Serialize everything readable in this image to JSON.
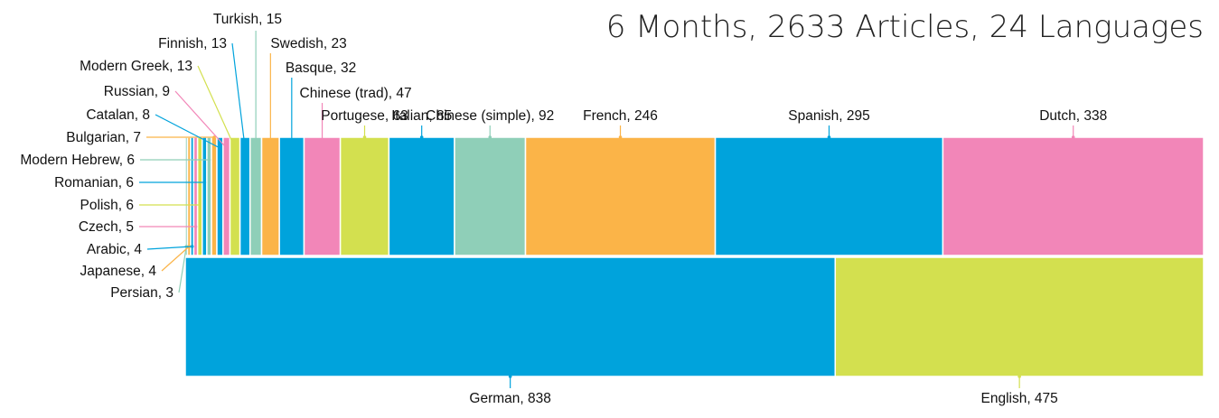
{
  "chart_data": {
    "type": "treemap",
    "title": "6 Months,  2633 Articles,  24 Languages",
    "items": [
      {
        "label": "Persian",
        "value": 3,
        "color": "#8fcfb8"
      },
      {
        "label": "Japanese",
        "value": 4,
        "color": "#fbb448"
      },
      {
        "label": "Arabic",
        "value": 4,
        "color": "#00a3dc"
      },
      {
        "label": "Czech",
        "value": 5,
        "color": "#f286b8"
      },
      {
        "label": "Polish",
        "value": 6,
        "color": "#d3e04f"
      },
      {
        "label": "Romanian",
        "value": 6,
        "color": "#00a3dc"
      },
      {
        "label": "Modern Hebrew",
        "value": 6,
        "color": "#8fcfb8"
      },
      {
        "label": "Bulgarian",
        "value": 7,
        "color": "#fbb448"
      },
      {
        "label": "Catalan",
        "value": 8,
        "color": "#00a3dc"
      },
      {
        "label": "Russian",
        "value": 9,
        "color": "#f286b8"
      },
      {
        "label": "Modern Greek",
        "value": 13,
        "color": "#d3e04f"
      },
      {
        "label": "Finnish",
        "value": 13,
        "color": "#00a3dc"
      },
      {
        "label": "Turkish",
        "value": 15,
        "color": "#8fcfb8"
      },
      {
        "label": "Swedish",
        "value": 23,
        "color": "#fbb448"
      },
      {
        "label": "Basque",
        "value": 32,
        "color": "#00a3dc"
      },
      {
        "label": "Chinese (trad)",
        "value": 47,
        "color": "#f286b8"
      },
      {
        "label": "Portugese",
        "value": 63,
        "color": "#d3e04f"
      },
      {
        "label": "Italian",
        "value": 85,
        "color": "#00a3dc"
      },
      {
        "label": "Chinese (simple)",
        "value": 92,
        "color": "#8fcfb8"
      },
      {
        "label": "French",
        "value": 246,
        "color": "#fbb448"
      },
      {
        "label": "Spanish",
        "value": 295,
        "color": "#00a3dc"
      },
      {
        "label": "Dutch",
        "value": 338,
        "color": "#f286b8"
      },
      {
        "label": "German",
        "value": 838,
        "color": "#00a3dc"
      },
      {
        "label": "English",
        "value": 475,
        "color": "#d3e04f"
      }
    ]
  }
}
